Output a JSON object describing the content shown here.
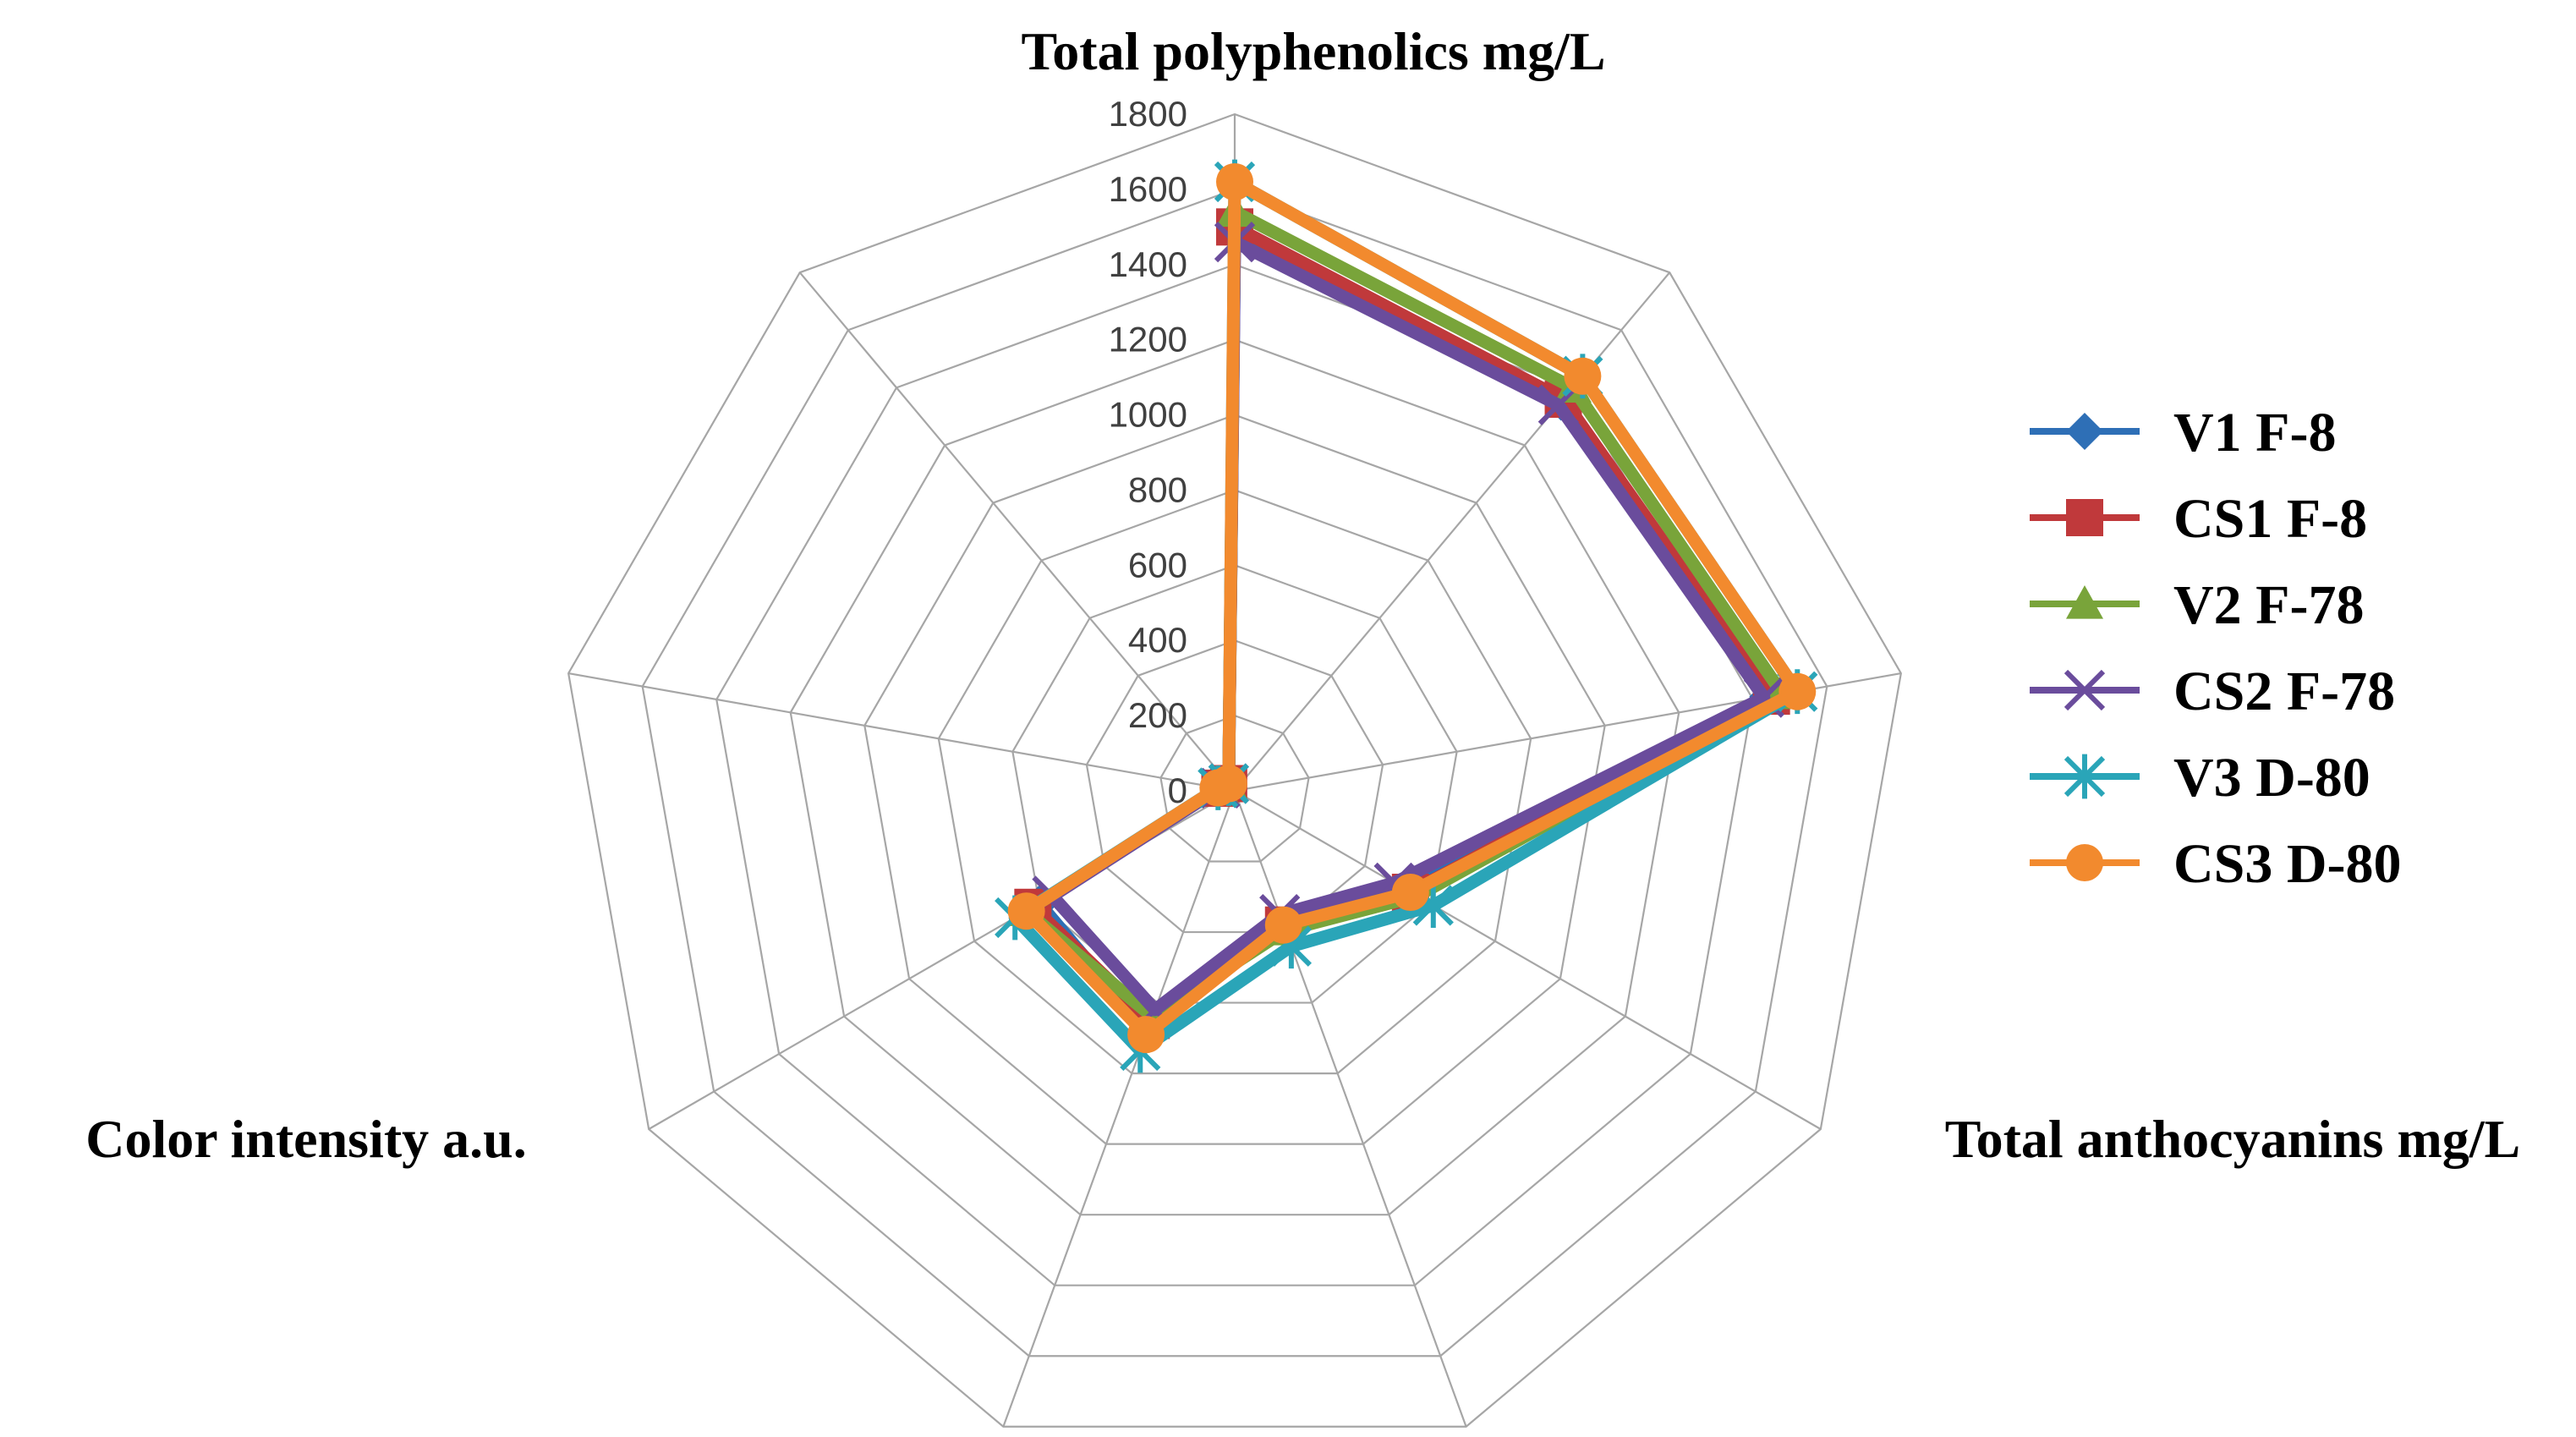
{
  "chart_data": {
    "type": "radar",
    "title": "",
    "axes_count": 9,
    "axes": [
      {
        "index": 0,
        "label": "Total polyphenolics  mg/L"
      },
      {
        "index": 3,
        "label": "Total anthocyanins mg/L"
      },
      {
        "index": 6,
        "label": "Color intensity  a.u."
      }
    ],
    "rlim": [
      0,
      1800
    ],
    "ticks": [
      0,
      200,
      400,
      600,
      800,
      1000,
      1200,
      1400,
      1600,
      1800
    ],
    "series": [
      {
        "name": "V1 F-8",
        "color": "#2e6fb6",
        "marker": "diamond",
        "values": [
          1480,
          1350,
          1440,
          520,
          380,
          680,
          600,
          40,
          25
        ]
      },
      {
        "name": "CS1 F-8",
        "color": "#c0393b",
        "marker": "square",
        "values": [
          1500,
          1360,
          1450,
          540,
          380,
          650,
          620,
          40,
          25
        ]
      },
      {
        "name": "V2 F-78",
        "color": "#79a43a",
        "marker": "triangle",
        "values": [
          1540,
          1400,
          1480,
          560,
          395,
          640,
          640,
          40,
          25
        ]
      },
      {
        "name": "CS2 F-78",
        "color": "#6a4c9c",
        "marker": "x",
        "values": [
          1460,
          1340,
          1430,
          490,
          350,
          620,
          560,
          40,
          25
        ]
      },
      {
        "name": "V3 D-80",
        "color": "#2aa5b8",
        "marker": "star",
        "values": [
          1620,
          1440,
          1520,
          610,
          440,
          735,
          675,
          45,
          25
        ]
      },
      {
        "name": "CS3 D-80",
        "color": "#f28a2e",
        "marker": "circle",
        "values": [
          1620,
          1440,
          1520,
          540,
          380,
          690,
          640,
          45,
          25
        ]
      }
    ]
  }
}
